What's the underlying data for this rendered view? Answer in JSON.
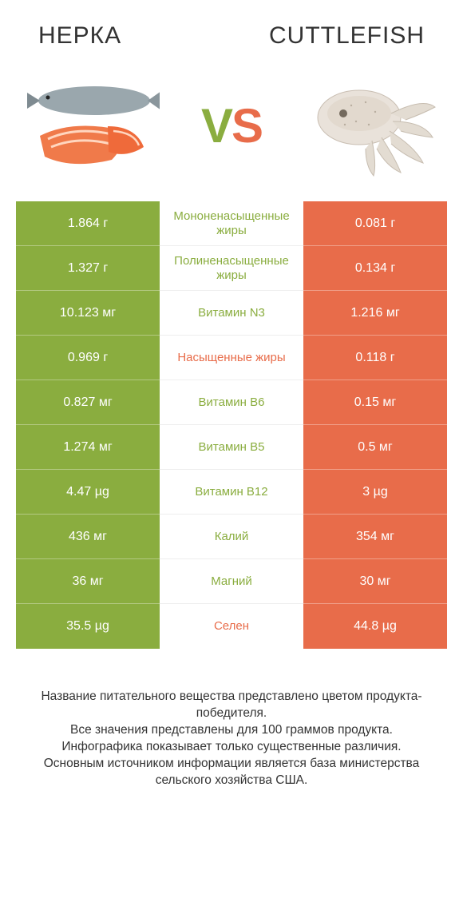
{
  "colors": {
    "left_bg": "#8aad3f",
    "right_bg": "#e86c4a",
    "mid_green": "#8aad3f",
    "mid_red": "#e86c4a",
    "text": "#333333"
  },
  "header": {
    "left_title": "Нерка",
    "right_title": "Cuttlefish"
  },
  "vs": {
    "v": "V",
    "s": "S"
  },
  "rows": [
    {
      "left": "1.864 г",
      "label": "Мононенасыщенные жиры",
      "right": "0.081 г",
      "winner": "left"
    },
    {
      "left": "1.327 г",
      "label": "Полиненасыщенные жиры",
      "right": "0.134 г",
      "winner": "left"
    },
    {
      "left": "10.123 мг",
      "label": "Витамин N3",
      "right": "1.216 мг",
      "winner": "left"
    },
    {
      "left": "0.969 г",
      "label": "Насыщенные жиры",
      "right": "0.118 г",
      "winner": "right"
    },
    {
      "left": "0.827 мг",
      "label": "Витамин B6",
      "right": "0.15 мг",
      "winner": "left"
    },
    {
      "left": "1.274 мг",
      "label": "Витамин B5",
      "right": "0.5 мг",
      "winner": "left"
    },
    {
      "left": "4.47 µg",
      "label": "Витамин B12",
      "right": "3 µg",
      "winner": "left"
    },
    {
      "left": "436 мг",
      "label": "Калий",
      "right": "354 мг",
      "winner": "left"
    },
    {
      "left": "36 мг",
      "label": "Магний",
      "right": "30 мг",
      "winner": "left"
    },
    {
      "left": "35.5 µg",
      "label": "Селен",
      "right": "44.8 µg",
      "winner": "right"
    }
  ],
  "footer": {
    "line1": "Название питательного вещества представлено цветом продукта-победителя.",
    "line2": "Все значения представлены для 100 граммов продукта.",
    "line3": "Инфографика показывает только существенные различия.",
    "line4": "Основным источником информации является база министерства сельского хозяйства США."
  }
}
